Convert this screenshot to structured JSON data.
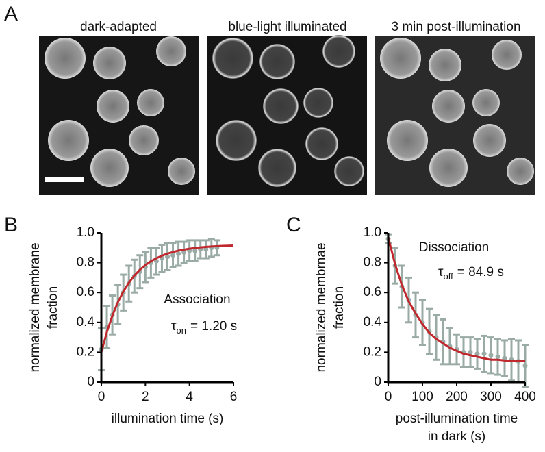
{
  "panel_a": {
    "label": "A",
    "captions": [
      "dark-adapted",
      "blue-light illuminated",
      "3 min post-illumination"
    ]
  },
  "chart_data": [
    {
      "type": "errorbar",
      "panel_label": "B",
      "y_label": [
        "normalized membrane",
        "fraction"
      ],
      "x_label": [
        "illumination time (s)"
      ],
      "xlim": [
        0,
        6
      ],
      "xticks": [
        0,
        2,
        4,
        6
      ],
      "ylim": [
        0,
        1
      ],
      "yticks": [
        0,
        0.2,
        0.4,
        0.6,
        0.8,
        {
          "value": 1,
          "label": "1.0"
        }
      ],
      "annotation": {
        "text": "Association",
        "tau_symbol": "τ",
        "tau_subscript": "on",
        "tau_value": "= 1.20 s"
      },
      "series": [
        {
          "style": "errorbar",
          "color": "#9aaba6",
          "x": [
            0,
            0.25,
            0.5,
            0.75,
            1,
            1.25,
            1.5,
            1.75,
            2,
            2.25,
            2.5,
            2.75,
            3,
            3.25,
            3.5,
            3.75,
            4,
            4.25,
            4.5,
            4.75,
            5,
            5.25
          ],
          "values": [
            0.22,
            0.37,
            0.45,
            0.52,
            0.6,
            0.66,
            0.71,
            0.74,
            0.77,
            0.8,
            0.81,
            0.83,
            0.84,
            0.85,
            0.86,
            0.87,
            0.88,
            0.88,
            0.89,
            0.89,
            0.9,
            0.9
          ],
          "errors": [
            0.14,
            0.14,
            0.13,
            0.13,
            0.12,
            0.12,
            0.11,
            0.11,
            0.1,
            0.1,
            0.09,
            0.09,
            0.09,
            0.08,
            0.08,
            0.07,
            0.07,
            0.07,
            0.06,
            0.06,
            0.06,
            0.05
          ]
        },
        {
          "style": "line",
          "color": "#c0282d",
          "x": [
            0,
            0.25,
            0.5,
            0.75,
            1,
            1.25,
            1.5,
            1.75,
            2,
            2.25,
            2.5,
            2.75,
            3,
            3.5,
            4,
            4.5,
            5,
            5.5,
            6
          ],
          "values": [
            0.2,
            0.335,
            0.445,
            0.535,
            0.607,
            0.666,
            0.714,
            0.753,
            0.784,
            0.81,
            0.83,
            0.847,
            0.861,
            0.881,
            0.894,
            0.903,
            0.909,
            0.913,
            0.915
          ]
        }
      ]
    },
    {
      "type": "errorbar",
      "panel_label": "C",
      "y_label": [
        "normalized membrnae",
        "fraction"
      ],
      "x_label": [
        "post-illumination time",
        "in dark (s)"
      ],
      "xlim": [
        0,
        400
      ],
      "xticks": [
        0,
        100,
        200,
        300,
        400
      ],
      "ylim": [
        0,
        1
      ],
      "yticks": [
        0,
        0.2,
        0.4,
        0.6,
        0.8,
        {
          "value": 1,
          "label": "1.0"
        }
      ],
      "annotation": {
        "text": "Dissociation",
        "tau_symbol": "τ",
        "tau_subscript": "off",
        "tau_value": "= 84.9 s"
      },
      "series": [
        {
          "style": "errorbar",
          "color": "#9aaba6",
          "x": [
            0,
            20,
            40,
            60,
            80,
            100,
            120,
            140,
            160,
            180,
            200,
            220,
            240,
            260,
            280,
            300,
            320,
            340,
            360,
            380,
            400
          ],
          "values": [
            0.96,
            0.78,
            0.64,
            0.55,
            0.45,
            0.4,
            0.34,
            0.3,
            0.27,
            0.24,
            0.22,
            0.2,
            0.2,
            0.19,
            0.19,
            0.18,
            0.17,
            0.16,
            0.15,
            0.14,
            0.11
          ],
          "errors": [
            0.03,
            0.12,
            0.14,
            0.15,
            0.15,
            0.15,
            0.15,
            0.15,
            0.15,
            0.12,
            0.1,
            0.1,
            0.1,
            0.1,
            0.12,
            0.12,
            0.12,
            0.12,
            0.14,
            0.14,
            0.14
          ]
        },
        {
          "style": "line",
          "color": "#c0282d",
          "x": [
            0,
            20,
            40,
            60,
            80,
            100,
            120,
            140,
            160,
            180,
            200,
            220,
            240,
            260,
            280,
            300,
            320,
            340,
            360,
            380,
            400
          ],
          "values": [
            0.97,
            0.79,
            0.65,
            0.54,
            0.46,
            0.39,
            0.33,
            0.29,
            0.26,
            0.23,
            0.21,
            0.19,
            0.18,
            0.17,
            0.16,
            0.15,
            0.15,
            0.145,
            0.14,
            0.14,
            0.14
          ]
        }
      ]
    }
  ]
}
